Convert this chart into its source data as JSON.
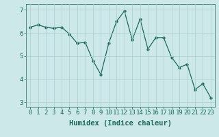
{
  "x": [
    0,
    1,
    2,
    3,
    4,
    5,
    6,
    7,
    8,
    9,
    10,
    11,
    12,
    13,
    14,
    15,
    16,
    17,
    18,
    19,
    20,
    21,
    22,
    23
  ],
  "y": [
    6.25,
    6.35,
    6.25,
    6.2,
    6.25,
    5.95,
    5.55,
    5.6,
    4.8,
    4.2,
    5.55,
    6.5,
    6.95,
    5.7,
    6.6,
    5.3,
    5.8,
    5.8,
    4.95,
    4.5,
    4.65,
    3.55,
    3.8,
    3.2
  ],
  "line_color": "#1a6b5a",
  "marker": "o",
  "marker_size": 2.5,
  "bg_color": "#cce8e8",
  "grid_color": "#aacfcf",
  "xlabel": "Humidex (Indice chaleur)",
  "xlim": [
    -0.5,
    23.5
  ],
  "ylim": [
    2.8,
    7.25
  ],
  "yticks": [
    3,
    4,
    5,
    6,
    7
  ],
  "xticks": [
    0,
    1,
    2,
    3,
    4,
    5,
    6,
    7,
    8,
    9,
    10,
    11,
    12,
    13,
    14,
    15,
    16,
    17,
    18,
    19,
    20,
    21,
    22,
    23
  ],
  "tick_color": "#1a6b5a",
  "label_fontsize": 7.5,
  "tick_fontsize": 6.5
}
